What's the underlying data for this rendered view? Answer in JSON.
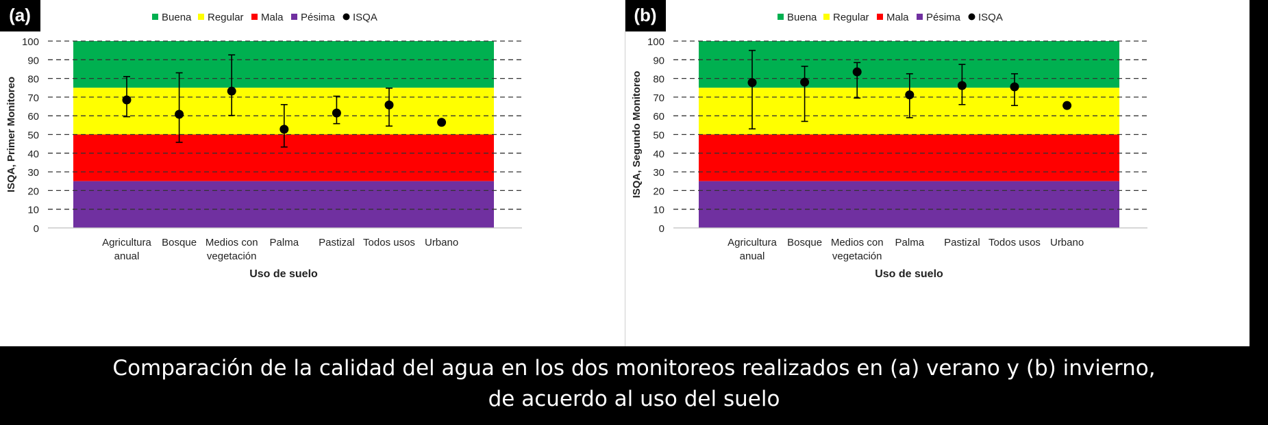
{
  "chart_data": [
    {
      "type": "error-bar-scatter",
      "panel_label": "(a)",
      "title": "",
      "xlabel": "Uso de suelo",
      "ylabel": "ISQA, Primer Monitoreo",
      "ylim": [
        0,
        100
      ],
      "yticks": [
        0,
        10,
        20,
        30,
        40,
        50,
        60,
        70,
        80,
        90,
        100
      ],
      "gridlines": "dashed",
      "legend_position": "top",
      "categories": [
        [
          "Agricultura",
          "anual"
        ],
        [
          "Bosque"
        ],
        [
          "Medios con",
          "vegetación"
        ],
        [
          "Palma"
        ],
        [
          "Pastizal"
        ],
        [
          "Todos usos"
        ],
        [
          "Urbano"
        ]
      ],
      "bands": [
        {
          "name": "Buena",
          "from": 75,
          "to": 100,
          "color": "#00b050"
        },
        {
          "name": "Regular",
          "from": 50,
          "to": 75,
          "color": "#ffff00"
        },
        {
          "name": "Mala",
          "from": 25,
          "to": 50,
          "color": "#ff0000"
        },
        {
          "name": "Pésima",
          "from": 0,
          "to": 25,
          "color": "#7030a0"
        }
      ],
      "series": [
        {
          "name": "ISQA",
          "values": [
            68.5,
            60.8,
            73.2,
            52.8,
            61.5,
            65.8,
            56.5
          ],
          "error_low": [
            59.5,
            45.8,
            60.2,
            43.3,
            55.8,
            54.5,
            null
          ],
          "error_high": [
            81.0,
            83.0,
            92.6,
            66.0,
            70.5,
            74.8,
            null
          ]
        }
      ]
    },
    {
      "type": "error-bar-scatter",
      "panel_label": "(b)",
      "title": "",
      "xlabel": "Uso de suelo",
      "ylabel": "ISQA, Segundo Monitoreo",
      "ylim": [
        0,
        100
      ],
      "yticks": [
        0,
        10,
        20,
        30,
        40,
        50,
        60,
        70,
        80,
        90,
        100
      ],
      "gridlines": "dashed",
      "legend_position": "top",
      "categories": [
        [
          "Agricultura",
          "anual"
        ],
        [
          "Bosque"
        ],
        [
          "Medios con",
          "vegetación"
        ],
        [
          "Palma"
        ],
        [
          "Pastizal"
        ],
        [
          "Todos usos"
        ],
        [
          "Urbano"
        ]
      ],
      "bands": [
        {
          "name": "Buena",
          "from": 75,
          "to": 100,
          "color": "#00b050"
        },
        {
          "name": "Regular",
          "from": 50,
          "to": 75,
          "color": "#ffff00"
        },
        {
          "name": "Mala",
          "from": 25,
          "to": 50,
          "color": "#ff0000"
        },
        {
          "name": "Pésima",
          "from": 0,
          "to": 25,
          "color": "#7030a0"
        }
      ],
      "series": [
        {
          "name": "ISQA",
          "values": [
            77.8,
            78.0,
            83.5,
            71.2,
            76.2,
            75.5,
            65.5
          ],
          "error_low": [
            53.0,
            57.0,
            69.5,
            59.0,
            66.0,
            65.5,
            null
          ],
          "error_high": [
            95.0,
            86.5,
            88.5,
            82.5,
            87.5,
            82.5,
            null
          ]
        }
      ]
    }
  ],
  "caption": {
    "line1": "Comparación de la calidad del agua en los dos monitoreos realizados en (a) verano y (b) invierno,",
    "line2": "de acuerdo al uso del suelo"
  }
}
